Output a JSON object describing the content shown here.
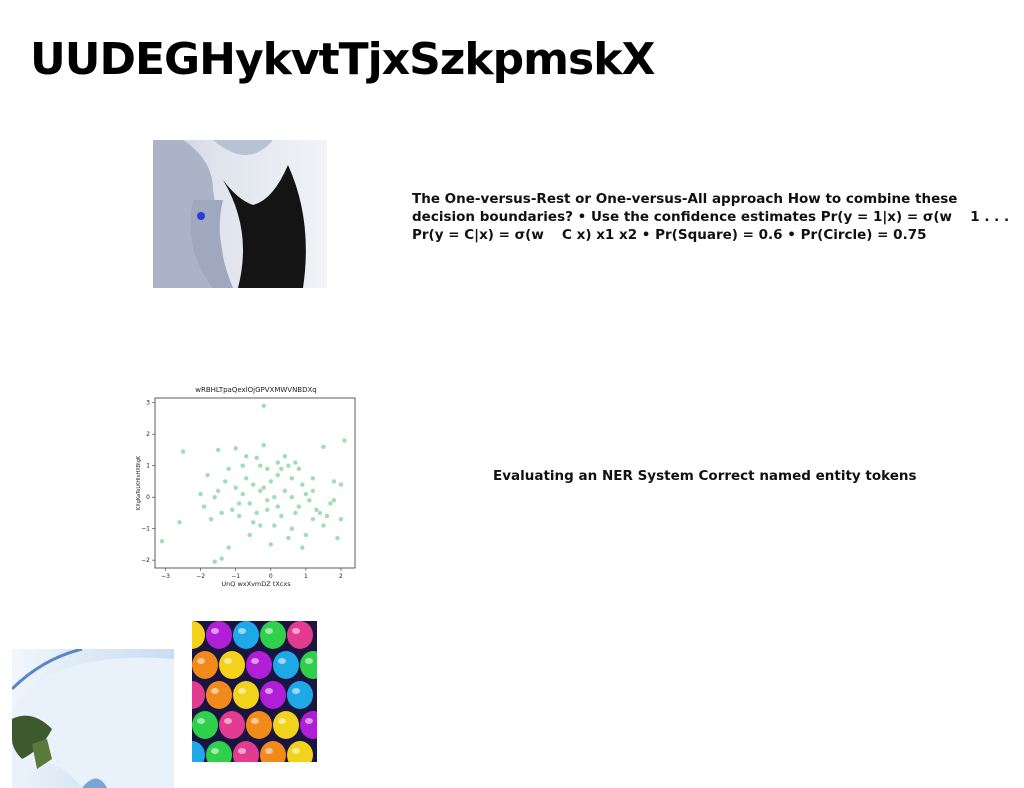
{
  "slide": {
    "title": "UUDEGHykvtTjxSzkpmskX",
    "text_1": "The One-versus-Rest or One-versus-All approach How to combine these decision boundaries? • Use the confidence estimates Pr(y = 1|x) = σ(w  1 . . . Pr(y = C|x) = σ(w  C x) x1 x2 • Pr(Square) = 0.6 • Pr(Circle) = 0.75",
    "text_2": "Evaluating an NER System Correct named entity tokens"
  },
  "chart_data": {
    "type": "scatter",
    "title": "wRBHLTpaQexlOjGPVXMWVNBDXq",
    "xlabel": "UnQ wxXvmDZ tXcxs",
    "ylabel": "KXgKaTeLKHIxHXBlgK",
    "xlim": [
      -3.3,
      2.4
    ],
    "ylim": [
      -2.25,
      3.15
    ],
    "xticks": [
      -3,
      -2,
      -1,
      0,
      1,
      2
    ],
    "yticks": [
      -2,
      -1,
      0,
      1,
      2,
      3
    ],
    "color": "#7fd39a",
    "points": [
      [
        -0.2,
        2.9
      ],
      [
        -3.1,
        -1.4
      ],
      [
        -2.5,
        1.45
      ],
      [
        -2.6,
        -0.8
      ],
      [
        -1.8,
        0.7
      ],
      [
        -1.5,
        1.5
      ],
      [
        -1.2,
        -1.6
      ],
      [
        -1.6,
        -2.05
      ],
      [
        -1.4,
        -1.95
      ],
      [
        -1.0,
        1.55
      ],
      [
        -0.7,
        1.3
      ],
      [
        -0.4,
        1.25
      ],
      [
        -0.2,
        1.65
      ],
      [
        -0.1,
        0.9
      ],
      [
        0.2,
        1.1
      ],
      [
        0.4,
        1.3
      ],
      [
        0.7,
        1.1
      ],
      [
        0.8,
        0.9
      ],
      [
        1.2,
        0.6
      ],
      [
        1.5,
        1.6
      ],
      [
        1.8,
        0.5
      ],
      [
        2.1,
        1.8
      ],
      [
        2.0,
        0.4
      ],
      [
        1.7,
        -0.2
      ],
      [
        1.4,
        -0.5
      ],
      [
        1.2,
        -0.7
      ],
      [
        1.0,
        -1.2
      ],
      [
        0.9,
        -1.6
      ],
      [
        0.6,
        -1.0
      ],
      [
        0.3,
        -0.6
      ],
      [
        0.2,
        -0.3
      ],
      [
        -0.1,
        -0.1
      ],
      [
        -0.3,
        -0.9
      ],
      [
        -0.5,
        -0.8
      ],
      [
        -0.6,
        -0.2
      ],
      [
        -0.8,
        0.1
      ],
      [
        -1.0,
        0.3
      ],
      [
        -1.1,
        -0.4
      ],
      [
        -1.3,
        0.5
      ],
      [
        -1.6,
        0.0
      ],
      [
        -1.7,
        -0.7
      ],
      [
        -1.4,
        -0.5
      ],
      [
        -0.9,
        -0.6
      ],
      [
        -0.7,
        0.6
      ],
      [
        -0.5,
        0.4
      ],
      [
        -0.3,
        0.2
      ],
      [
        0.0,
        0.5
      ],
      [
        0.2,
        0.7
      ],
      [
        0.4,
        0.2
      ],
      [
        0.6,
        0.0
      ],
      [
        0.8,
        -0.3
      ],
      [
        1.0,
        0.1
      ],
      [
        1.1,
        -0.1
      ],
      [
        1.3,
        -0.4
      ],
      [
        1.6,
        -0.6
      ],
      [
        1.9,
        -1.3
      ],
      [
        2.0,
        -0.7
      ],
      [
        0.5,
        1.0
      ],
      [
        -0.2,
        0.3
      ],
      [
        0.1,
        -0.9
      ],
      [
        -0.4,
        -0.5
      ],
      [
        0.7,
        -0.5
      ],
      [
        1.5,
        -0.9
      ],
      [
        -1.2,
        0.9
      ],
      [
        -0.8,
        1.0
      ],
      [
        0.3,
        0.9
      ],
      [
        -0.6,
        -1.2
      ],
      [
        0.0,
        -1.5
      ],
      [
        0.5,
        -1.3
      ],
      [
        -1.9,
        -0.3
      ],
      [
        -2.0,
        0.1
      ],
      [
        1.8,
        -0.1
      ],
      [
        0.9,
        0.4
      ],
      [
        -0.3,
        1.0
      ],
      [
        0.1,
        0.0
      ],
      [
        -0.9,
        -0.2
      ],
      [
        0.6,
        0.6
      ],
      [
        1.2,
        0.2
      ],
      [
        -1.5,
        0.2
      ],
      [
        -0.1,
        -0.4
      ]
    ]
  }
}
